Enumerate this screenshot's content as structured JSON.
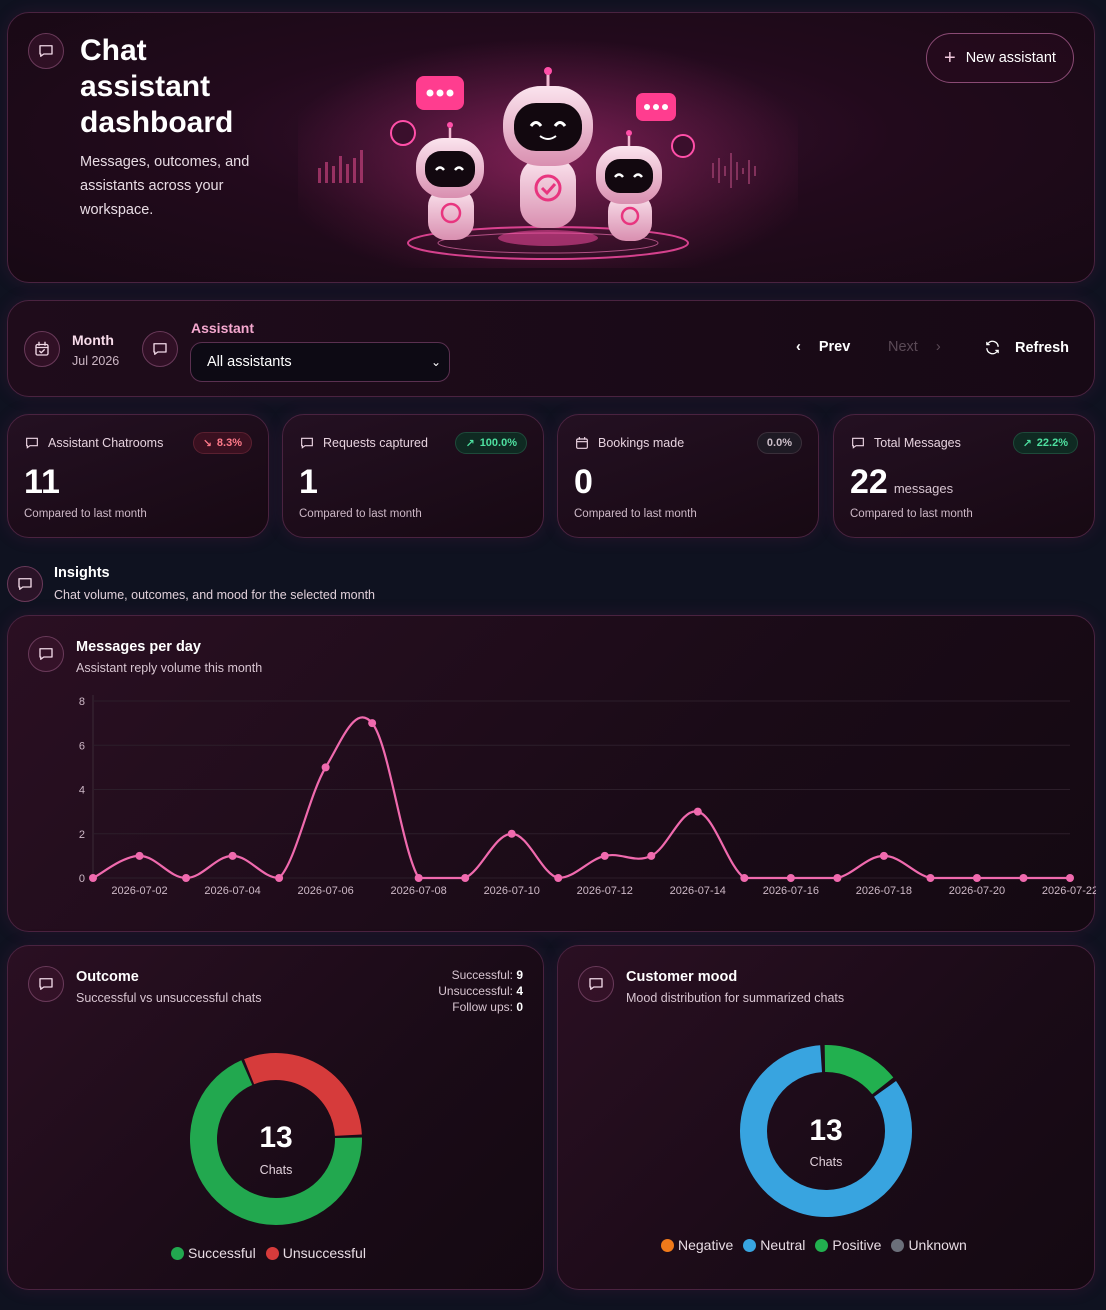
{
  "hero": {
    "title": "Chat assistant dashboard",
    "subtitle": "Messages, outcomes, and assistants across your workspace.",
    "new_assistant_label": "New assistant"
  },
  "filters": {
    "month_label": "Month",
    "month_value": "Jul 2026",
    "assistant_label": "Assistant",
    "assistant_selected": "All assistants",
    "prev_label": "Prev",
    "next_label": "Next",
    "refresh_label": "Refresh"
  },
  "stats": [
    {
      "label": "Assistant Chatrooms",
      "change": "8.3%",
      "direction": "down",
      "value": "11",
      "unit": "",
      "compare": "Compared to last month",
      "icon": "chat-icon"
    },
    {
      "label": "Requests captured",
      "change": "100.0%",
      "direction": "up",
      "value": "1",
      "unit": "",
      "compare": "Compared to last month",
      "icon": "chat-icon"
    },
    {
      "label": "Bookings made",
      "change": "0.0%",
      "direction": "flat",
      "value": "0",
      "unit": "",
      "compare": "Compared to last month",
      "icon": "calendar-icon"
    },
    {
      "label": "Total Messages",
      "change": "22.2%",
      "direction": "up",
      "value": "22",
      "unit": "messages",
      "compare": "Compared to last month",
      "icon": "chat-icon"
    }
  ],
  "insights": {
    "title": "Insights",
    "subtitle": "Chat volume, outcomes, and mood for the selected month"
  },
  "line_card": {
    "title": "Messages per day",
    "subtitle": "Assistant reply volume this month"
  },
  "outcome_card": {
    "title": "Outcome",
    "subtitle": "Successful vs unsuccessful chats",
    "totals": [
      {
        "label": "Successful:",
        "value": "9"
      },
      {
        "label": "Unsuccessful:",
        "value": "4"
      },
      {
        "label": "Follow ups:",
        "value": "0"
      }
    ],
    "center_value": "13",
    "center_label": "Chats"
  },
  "mood_card": {
    "title": "Customer mood",
    "subtitle": "Mood distribution for summarized chats",
    "center_value": "13",
    "center_label": "Chats"
  },
  "colors": {
    "accent": "#f06aae",
    "successful": "#22a84f",
    "unsuccessful": "#d63b3b",
    "negative": "#f07a1a",
    "neutral": "#38a4e0",
    "positive": "#22b04f",
    "unknown": "#6b6f7a"
  },
  "chart_data": [
    {
      "type": "line",
      "title": "Messages per day",
      "x": [
        "2026-07-01",
        "2026-07-02",
        "2026-07-03",
        "2026-07-04",
        "2026-07-05",
        "2026-07-06",
        "2026-07-07",
        "2026-07-08",
        "2026-07-09",
        "2026-07-10",
        "2026-07-11",
        "2026-07-12",
        "2026-07-13",
        "2026-07-14",
        "2026-07-15",
        "2026-07-16",
        "2026-07-17",
        "2026-07-18",
        "2026-07-19",
        "2026-07-20",
        "2026-07-21",
        "2026-07-22"
      ],
      "x_tick_labels": [
        "2026-07-02",
        "2026-07-04",
        "2026-07-06",
        "2026-07-08",
        "2026-07-10",
        "2026-07-12",
        "2026-07-14",
        "2026-07-16",
        "2026-07-18",
        "2026-07-20",
        "2026-07-22"
      ],
      "values": [
        0,
        1,
        0,
        1,
        0,
        5,
        7,
        0,
        0,
        2,
        0,
        1,
        1,
        3,
        0,
        0,
        0,
        1,
        0,
        0,
        0,
        0
      ],
      "ylim": [
        0,
        8
      ],
      "y_ticks": [
        0,
        2,
        4,
        6,
        8
      ],
      "grid": true
    },
    {
      "type": "pie",
      "title": "Outcome",
      "categories": [
        "Successful",
        "Unsuccessful"
      ],
      "values": [
        9,
        4
      ],
      "legend": "bottom"
    },
    {
      "type": "pie",
      "title": "Customer mood",
      "categories": [
        "Negative",
        "Neutral",
        "Positive",
        "Unknown"
      ],
      "values": [
        0,
        11,
        2,
        0
      ],
      "legend": "bottom"
    }
  ]
}
